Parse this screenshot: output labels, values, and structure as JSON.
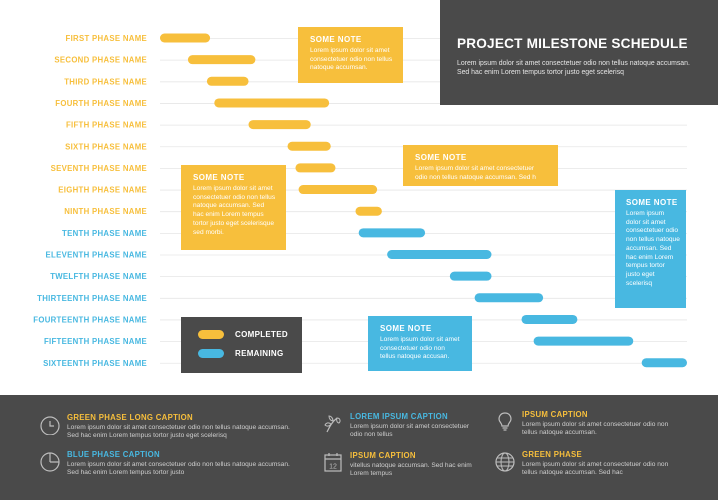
{
  "colors": {
    "completed": "#f7bf3c",
    "remaining": "#48b8e1",
    "dark_panel": "#4a4a4a",
    "grid": "#e6e6e6"
  },
  "chart_data": {
    "type": "gantt",
    "title": "PROJECT MILESTONE SCHEDULE",
    "phases": [
      {
        "name": "FIRST PHASE NAME",
        "status": "completed",
        "start": 0.0,
        "end": 0.095
      },
      {
        "name": "SECOND PHASE NAME",
        "status": "completed",
        "start": 0.053,
        "end": 0.181
      },
      {
        "name": "THIRD PHASE NAME",
        "status": "completed",
        "start": 0.089,
        "end": 0.168
      },
      {
        "name": "FOURTH PHASE NAME",
        "status": "completed",
        "start": 0.103,
        "end": 0.321
      },
      {
        "name": "FIFTH PHASE NAME",
        "status": "completed",
        "start": 0.168,
        "end": 0.286
      },
      {
        "name": "SIXTH PHASE NAME",
        "status": "completed",
        "start": 0.242,
        "end": 0.324
      },
      {
        "name": "SEVENTH PHASE NAME",
        "status": "completed",
        "start": 0.257,
        "end": 0.333
      },
      {
        "name": "EIGHTH PHASE NAME",
        "status": "completed",
        "start": 0.263,
        "end": 0.412
      },
      {
        "name": "NINTH PHASE NAME",
        "status": "completed",
        "start": 0.371,
        "end": 0.421
      },
      {
        "name": "TENTH PHASE NAME",
        "status": "remaining",
        "start": 0.377,
        "end": 0.503
      },
      {
        "name": "ELEVENTH PHASE NAME",
        "status": "remaining",
        "start": 0.431,
        "end": 0.629
      },
      {
        "name": "TWELFTH PHASE NAME",
        "status": "remaining",
        "start": 0.55,
        "end": 0.629
      },
      {
        "name": "THIRTEENTH PHASE NAME",
        "status": "remaining",
        "start": 0.597,
        "end": 0.727
      },
      {
        "name": "FOURTEENTH PHASE NAME",
        "status": "remaining",
        "start": 0.686,
        "end": 0.792
      },
      {
        "name": "FIFTEENTH PHASE NAME",
        "status": "remaining",
        "start": 0.709,
        "end": 0.898
      },
      {
        "name": "SIXTEENTH PHASE NAME",
        "status": "remaining",
        "start": 0.914,
        "end": 1.0
      }
    ]
  },
  "header": {
    "title": "PROJECT MILESTONE SCHEDULE",
    "body": "Lorem ipsum dolor sit amet consectetuer odio non tellus natoque accumsan. Sed hac enim Lorem tempus tortor justo eget scelerisq"
  },
  "notes": [
    {
      "title": "SOME NOTE",
      "body": "Lorem ipsum dolor sit amet consectetuer odio non tellus natoque accumsan."
    },
    {
      "title": "SOME NOTE",
      "body": "Lorem ipsum dolor sit amet consectetuer odio non tellus natoque accumsan. Sed h"
    },
    {
      "title": "SOME NOTE",
      "body": "Lorem ipsum dolor sit amet consectetuer odio non tellus natoque accumsan. Sed hac enim Lorem tempus tortor justo eget scelerisque sed morbi."
    },
    {
      "title": "SOME NOTE",
      "body": "Lorem ipsum dolor sit amet consectetuer odio non tellus natoque accumsan. Sed hac enim Lorem tempus tortor justo eget scelerisq"
    },
    {
      "title": "SOME NOTE",
      "body": "Lorem ipsum dolor sit amet consectetuer odio non tellus natoque accusan."
    }
  ],
  "legend": {
    "completed": "COMPLETED",
    "remaining": "REMAINING"
  },
  "footer": {
    "items": [
      {
        "title": "GREEN PHASE LONG CAPTION",
        "body": "Lorem ipsum dolor sit amet consectetuer odio non tellus natoque accumsan. Sed hac enim Lorem tempus tortor justo eget scelerisq",
        "icon": "clock-icon"
      },
      {
        "title": "BLUE PHASE CAPTION",
        "body": "Lorem ipsum dolor sit amet consectetuer odio non tellus natoque accumsan. Sed hac enim Lorem tempus tortor justo",
        "icon": "pie-chart-icon"
      },
      {
        "title": "LOREM IPSUM CAPTION",
        "body": "Lorem ipsum dolor sit amet consectetuer odio non tellus",
        "icon": "plant-icon"
      },
      {
        "title": "IPSUM CAPTION",
        "body": "vitellus natoque accumsan. Sed hac enim Lorem tempus",
        "icon": "calendar-icon"
      },
      {
        "title": "IPSUM CAPTION",
        "body": "Lorem ipsum dolor sit amet consectetuer odio non tellus natoque accumsan.",
        "icon": "lightbulb-icon"
      },
      {
        "title": "GREEN PHASE",
        "body": "Lorem ipsum dolor sit amet consectetuer odio non tellus natoque accumsan. Sed hac",
        "icon": "globe-icon"
      }
    ],
    "calendar_day": "12"
  }
}
